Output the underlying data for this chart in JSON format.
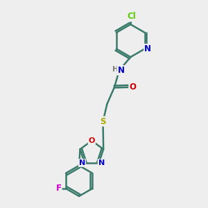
{
  "bg_color": "#eeeeee",
  "bond_color": "#3a7a6a",
  "bond_width": 1.8,
  "atom_colors": {
    "C": "#3a7a6a",
    "N": "#0000cc",
    "O": "#cc0000",
    "S": "#aaaa00",
    "Cl": "#55cc00",
    "F": "#cc00cc",
    "H": "#777777"
  },
  "font_size": 8.5,
  "fig_size": [
    3.0,
    3.0
  ],
  "dpi": 100
}
